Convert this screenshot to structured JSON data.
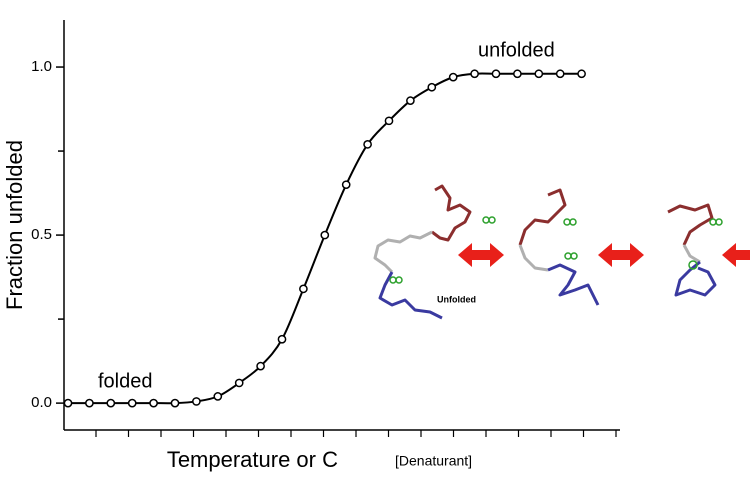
{
  "chart_data": {
    "type": "line",
    "ylabel": "Fraction unfolded",
    "xlabel_parts": [
      "Temperature or C",
      "[Denaturant]"
    ],
    "annotations": [
      "unfolded",
      "folded",
      "Unfolded"
    ],
    "categories": [
      null,
      null,
      null,
      null,
      null,
      null,
      null,
      null,
      null,
      null,
      null,
      null,
      null,
      null,
      null,
      null,
      null,
      null,
      null,
      null,
      null,
      null,
      null,
      null,
      null
    ],
    "values": [
      0,
      0,
      0,
      0,
      0,
      0,
      0.005,
      0.02,
      0.06,
      0.11,
      0.19,
      0.34,
      0.5,
      0.65,
      0.77,
      0.84,
      0.9,
      0.94,
      0.97,
      0.98,
      0.98,
      0.98,
      0.98,
      0.98,
      0.98
    ],
    "color": "#000000",
    "ylim": [
      -0.08,
      1.14
    ],
    "yticks": [
      {
        "value": 0,
        "label": "0.0"
      },
      {
        "value": 0.5,
        "label": "0.5"
      },
      {
        "value": 1,
        "label": "1.0"
      }
    ],
    "yminor_ticks": [
      0.25,
      0.75
    ]
  }
}
